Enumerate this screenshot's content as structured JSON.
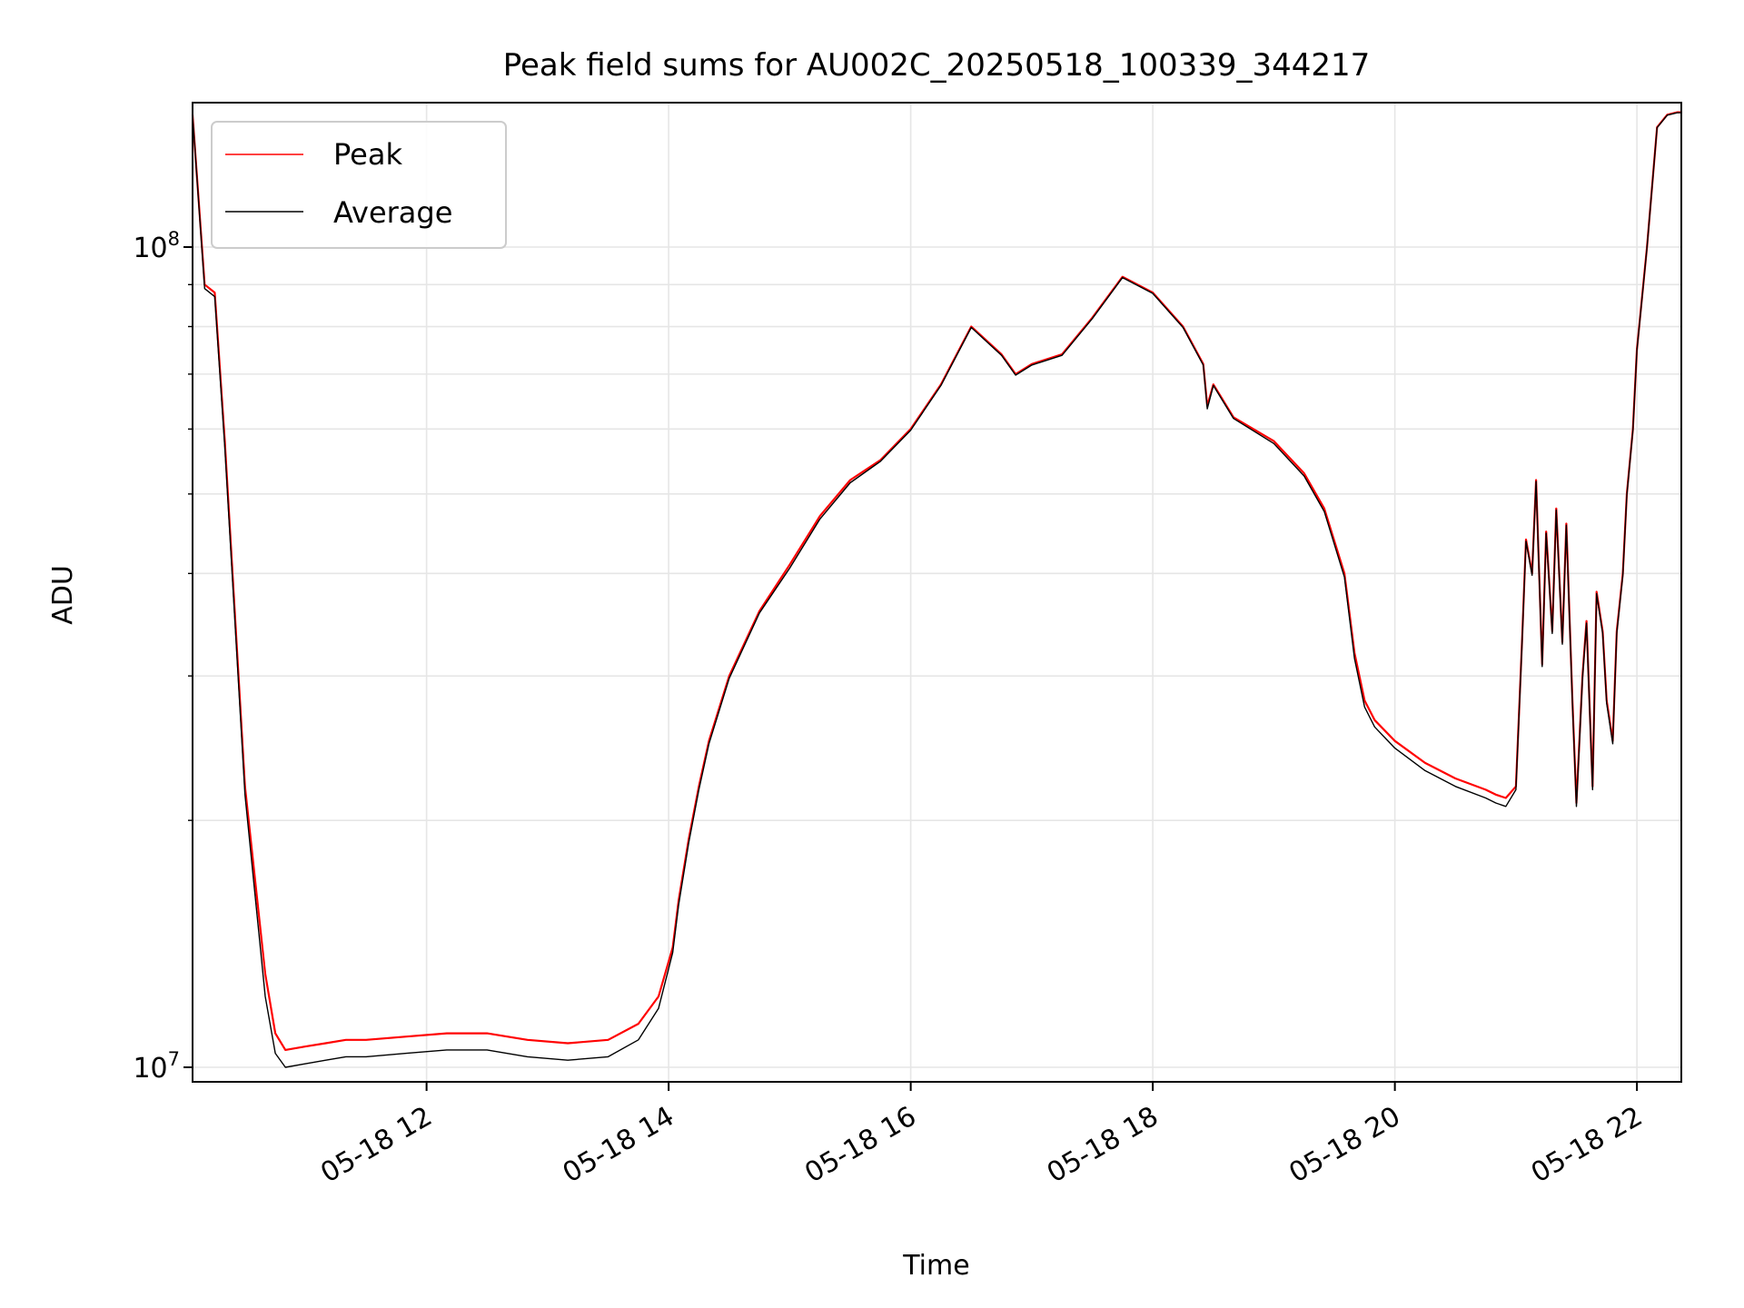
{
  "chart_data": {
    "type": "line",
    "title": "Peak field sums for AU002C_20250518_100339_344217",
    "xlabel": "Time",
    "ylabel": "ADU",
    "yscale": "log",
    "grid": true,
    "legend_position": "top-left",
    "xlim": [
      "2025-05-18T10:04",
      "2025-05-18T22:22"
    ],
    "ylim": [
      9600000,
      150000000
    ],
    "x_ticks": [
      {
        "value": "2025-05-18T12:00",
        "label": "05-18 12"
      },
      {
        "value": "2025-05-18T14:00",
        "label": "05-18 14"
      },
      {
        "value": "2025-05-18T16:00",
        "label": "05-18 16"
      },
      {
        "value": "2025-05-18T18:00",
        "label": "05-18 18"
      },
      {
        "value": "2025-05-18T20:00",
        "label": "05-18 20"
      },
      {
        "value": "2025-05-18T22:00",
        "label": "05-18 22"
      }
    ],
    "y_ticks": [
      {
        "value": 10000000,
        "base": "10",
        "exp": "7"
      },
      {
        "value": 100000000,
        "base": "10",
        "exp": "8"
      }
    ],
    "x_time": [
      "10:04",
      "10:10",
      "10:15",
      "10:20",
      "10:30",
      "10:40",
      "10:45",
      "10:50",
      "11:00",
      "11:10",
      "11:20",
      "11:30",
      "11:50",
      "12:10",
      "12:30",
      "12:50",
      "13:10",
      "13:30",
      "13:45",
      "13:55",
      "14:02",
      "14:05",
      "14:10",
      "14:15",
      "14:20",
      "14:30",
      "14:45",
      "15:00",
      "15:15",
      "15:30",
      "15:45",
      "16:00",
      "16:15",
      "16:30",
      "16:45",
      "16:52",
      "17:00",
      "17:15",
      "17:30",
      "17:45",
      "18:00",
      "18:15",
      "18:25",
      "18:27",
      "18:30",
      "18:40",
      "19:00",
      "19:15",
      "19:25",
      "19:35",
      "19:40",
      "19:45",
      "19:50",
      "20:00",
      "20:15",
      "20:30",
      "20:45",
      "20:50",
      "20:55",
      "21:00",
      "21:03",
      "21:05",
      "21:08",
      "21:10",
      "21:13",
      "21:15",
      "21:18",
      "21:20",
      "21:23",
      "21:25",
      "21:28",
      "21:30",
      "21:33",
      "21:35",
      "21:38",
      "21:40",
      "21:43",
      "21:45",
      "21:48",
      "21:50",
      "21:53",
      "21:55",
      "21:58",
      "22:00",
      "22:05",
      "22:10",
      "22:15",
      "22:20",
      "22:22"
    ],
    "series": [
      {
        "name": "Peak",
        "color": "#ff0000",
        "values": [
          145000000,
          90000000,
          88000000,
          58000000,
          22000000,
          13000000,
          11000000,
          10500000,
          10600000,
          10700000,
          10800000,
          10800000,
          10900000,
          11000000,
          11000000,
          10800000,
          10700000,
          10800000,
          11300000,
          12200000,
          14000000,
          16000000,
          19000000,
          22000000,
          25000000,
          30000000,
          36000000,
          41000000,
          47000000,
          52000000,
          55000000,
          60000000,
          68000000,
          80000000,
          74000000,
          70000000,
          72000000,
          74000000,
          82000000,
          92000000,
          88000000,
          80000000,
          72000000,
          64000000,
          68000000,
          62000000,
          58000000,
          53000000,
          48000000,
          40000000,
          32000000,
          28000000,
          26500000,
          25000000,
          23500000,
          22500000,
          21800000,
          21500000,
          21300000,
          22000000,
          33000000,
          44000000,
          40000000,
          52000000,
          31000000,
          45000000,
          34000000,
          48000000,
          33000000,
          46000000,
          28000000,
          21000000,
          30000000,
          35000000,
          22000000,
          38000000,
          34000000,
          28000000,
          25000000,
          34000000,
          40000000,
          50000000,
          60000000,
          75000000,
          100000000,
          140000000,
          145000000,
          146000000,
          146000000
        ]
      },
      {
        "name": "Average",
        "color": "#000000",
        "values": [
          145000000,
          89000000,
          87000000,
          57000000,
          21500000,
          12200000,
          10400000,
          10000000,
          10100000,
          10200000,
          10300000,
          10300000,
          10400000,
          10500000,
          10500000,
          10300000,
          10200000,
          10300000,
          10800000,
          11800000,
          13800000,
          15800000,
          18800000,
          21800000,
          24800000,
          29800000,
          35800000,
          40600000,
          46600000,
          51600000,
          54800000,
          59800000,
          67800000,
          79800000,
          73800000,
          69800000,
          71800000,
          73800000,
          81800000,
          91800000,
          87800000,
          79800000,
          71800000,
          63500000,
          67800000,
          61800000,
          57600000,
          52600000,
          47600000,
          39600000,
          31500000,
          27500000,
          26000000,
          24500000,
          23000000,
          22000000,
          21300000,
          21000000,
          20800000,
          21800000,
          32800000,
          43800000,
          39800000,
          51800000,
          30800000,
          44800000,
          33800000,
          47800000,
          32800000,
          45800000,
          27800000,
          20800000,
          29800000,
          34800000,
          21800000,
          37800000,
          33800000,
          27800000,
          24800000,
          33800000,
          39800000,
          49800000,
          59800000,
          74800000,
          99800000,
          139800000,
          144800000,
          145800000,
          145800000
        ]
      }
    ]
  }
}
